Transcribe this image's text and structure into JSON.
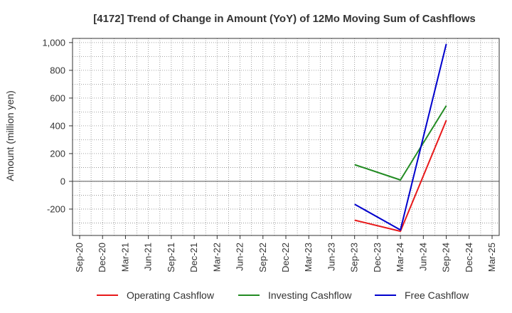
{
  "chart_data": {
    "type": "line",
    "title": "[4172]  Trend of Change in Amount (YoY) of 12Mo Moving Sum of Cashflows",
    "xlabel": "",
    "ylabel": "Amount (million yen)",
    "categories": [
      "Sep-20",
      "Dec-20",
      "Mar-21",
      "Jun-21",
      "Sep-21",
      "Dec-21",
      "Mar-22",
      "Jun-22",
      "Sep-22",
      "Dec-22",
      "Mar-23",
      "Jun-23",
      "Sep-23",
      "Dec-23",
      "Mar-24",
      "Jun-24",
      "Sep-24",
      "Dec-24",
      "Mar-25"
    ],
    "ylim": [
      -390,
      1030
    ],
    "yticks": [
      -200,
      0,
      200,
      400,
      600,
      800,
      1000
    ],
    "ytick_labels": [
      "-200",
      "0",
      "200",
      "400",
      "600",
      "800",
      "1,000"
    ],
    "series": [
      {
        "name": "Operating Cashflow",
        "color": "#e8191a",
        "values": [
          null,
          null,
          null,
          null,
          null,
          null,
          null,
          null,
          null,
          null,
          null,
          null,
          -280,
          null,
          -360,
          null,
          440,
          null,
          null
        ]
      },
      {
        "name": "Investing Cashflow",
        "color": "#228b22",
        "values": [
          null,
          null,
          null,
          null,
          null,
          null,
          null,
          null,
          null,
          null,
          null,
          null,
          120,
          null,
          10,
          null,
          545,
          null,
          null
        ]
      },
      {
        "name": "Free Cashflow",
        "color": "#0000cd",
        "values": [
          null,
          null,
          null,
          null,
          null,
          null,
          null,
          null,
          null,
          null,
          null,
          null,
          -165,
          null,
          -350,
          null,
          990,
          null,
          null
        ]
      }
    ],
    "grid": true,
    "legend": "bottom"
  }
}
